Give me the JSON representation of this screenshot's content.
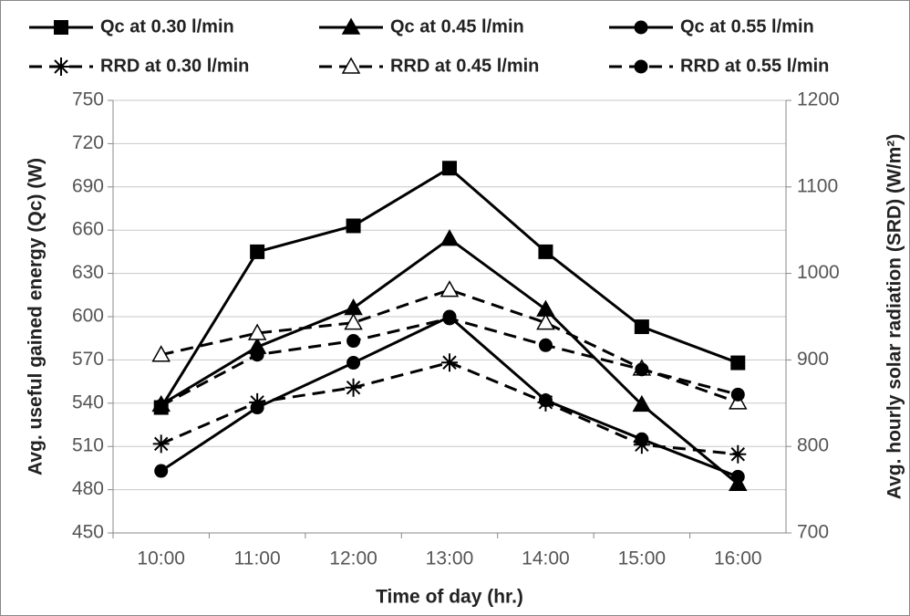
{
  "chart_data": {
    "type": "line",
    "x_label": "Time of day (hr.)",
    "y_label": "Avg. useful gained energy (Qc) (W)",
    "y2_label": "Avg. hourly solar radiation (SRD) (W/m²)",
    "categories": [
      "10:00",
      "11:00",
      "12:00",
      "13:00",
      "14:00",
      "15:00",
      "16:00"
    ],
    "ylim": [
      450,
      750
    ],
    "yticks": [
      450,
      480,
      510,
      540,
      570,
      600,
      630,
      660,
      690,
      720,
      750
    ],
    "y2lim": [
      700,
      1200
    ],
    "y2ticks": [
      700,
      800,
      900,
      1000,
      1100,
      1200
    ],
    "grid": true,
    "series": [
      {
        "name": "Qc at 0.30 l/min",
        "color": "#000000",
        "marker": "square",
        "dash": false,
        "values": [
          537,
          645,
          663,
          703,
          645,
          593,
          568
        ]
      },
      {
        "name": "Qc at 0.45 l/min",
        "color": "#000000",
        "marker": "triangle",
        "dash": false,
        "values": [
          539,
          579,
          606,
          654,
          605,
          539,
          484
        ]
      },
      {
        "name": "Qc at 0.55 l/min",
        "color": "#000000",
        "marker": "circle",
        "dash": false,
        "values": [
          493,
          537,
          568,
          600,
          542,
          515,
          489
        ]
      },
      {
        "name": "RRD at 0.30 l/min",
        "color": "#000000",
        "marker": "star",
        "dash": true,
        "axis": "y2",
        "values": [
          803,
          851,
          868,
          897,
          851,
          802,
          791
        ]
      },
      {
        "name": "RRD at 0.45 l/min",
        "color": "#000000",
        "marker": "open-triangle",
        "dash": true,
        "axis": "y2",
        "values": [
          906,
          931,
          943,
          981,
          943,
          890,
          851
        ]
      },
      {
        "name": "RRD at 0.55 l/min",
        "color": "#000000",
        "marker": "circle",
        "dash": true,
        "axis": "y2",
        "values": [
          847,
          906,
          922,
          948,
          917,
          889,
          860
        ]
      }
    ]
  }
}
